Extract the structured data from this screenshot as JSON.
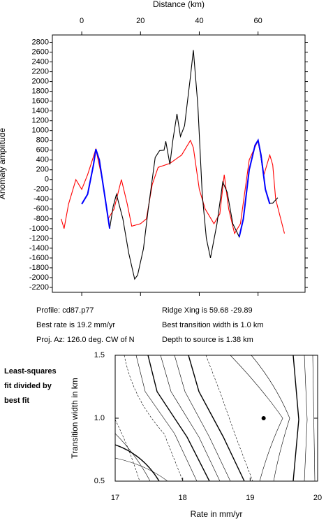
{
  "chart_data": [
    {
      "type": "line",
      "xlabel": "Distance (km)",
      "ylabel": "Anomaly amplitude",
      "xlim": [
        -10,
        76
      ],
      "xticks": [
        0,
        20,
        40,
        60
      ],
      "ylim": [
        -2300,
        2950
      ],
      "yticks": [
        -2200,
        -2000,
        -1800,
        -1600,
        -1400,
        -1200,
        -1000,
        -800,
        -600,
        -400,
        -200,
        0,
        200,
        400,
        600,
        800,
        1000,
        1200,
        1400,
        1600,
        1800,
        2000,
        2200,
        2400,
        2600,
        2800
      ],
      "annotations": [
        [
          "Profile: cd87.p77",
          "Best rate is 19.2 mm/yr",
          "Proj. Az: 126.0 deg. CW of N"
        ],
        [
          "Ridge Xing is 59.68 -29.89",
          "Best transition width is 1.0 km",
          "Depth to source is   1.38 km"
        ]
      ],
      "series": [
        {
          "color": "#ff0000",
          "x": [
            -7,
            -6,
            -4.5,
            -2,
            0,
            2,
            4.8,
            7,
            9,
            11,
            13.5,
            15.5,
            17,
            20,
            22,
            24,
            26,
            30,
            34,
            37,
            38,
            40,
            42,
            45,
            47,
            48.5,
            50,
            52,
            54,
            57,
            60,
            62,
            64,
            65,
            66,
            69
          ],
          "values": [
            -800,
            -1000,
            -500,
            0,
            -200,
            100,
            620,
            0,
            -800,
            -600,
            0,
            -500,
            -950,
            -900,
            -800,
            -100,
            250,
            330,
            500,
            800,
            650,
            -200,
            -600,
            -900,
            -700,
            100,
            -600,
            -1100,
            -900,
            400,
            800,
            100,
            500,
            300,
            -400,
            -1100
          ]
        },
        {
          "color": "#000000",
          "x": [
            0,
            2,
            4,
            4.8,
            6,
            8,
            9.5,
            10.7,
            11.8,
            14,
            16,
            18,
            19,
            21,
            22.6,
            25,
            26.5,
            28,
            28.6,
            30,
            31,
            32.4,
            33.6,
            35,
            37,
            38,
            39.5,
            41,
            42.4,
            43.8,
            46,
            48,
            49.5,
            51.4,
            53.6,
            55,
            57,
            59,
            60,
            61,
            62.5,
            64,
            65,
            66.7
          ],
          "values": [
            -500,
            -300,
            300,
            620,
            400,
            -400,
            -1000,
            -550,
            -300,
            -800,
            -1500,
            -2030,
            -1950,
            -1410,
            -620,
            450,
            590,
            600,
            780,
            310,
            800,
            1340,
            880,
            1100,
            2100,
            2640,
            1520,
            -300,
            -1200,
            -1600,
            -910,
            -50,
            -260,
            -900,
            -1170,
            -800,
            200,
            700,
            800,
            450,
            -200,
            -480,
            -480,
            -370
          ]
        },
        {
          "color": "#0000ff",
          "x": [
            0,
            2,
            4,
            4.8,
            6,
            8,
            9.5,
            null,
            53.6,
            55,
            57,
            59,
            60,
            61,
            62.5,
            64
          ],
          "values": [
            -500,
            -300,
            300,
            620,
            400,
            -400,
            -1000,
            null,
            -1170,
            -800,
            200,
            700,
            800,
            500,
            -200,
            -500
          ]
        }
      ]
    },
    {
      "type": "contour",
      "xlabel": "Rate in mm/yr",
      "ylabel": "Transition width in km",
      "annotation": [
        "Least-squares",
        "fit divided by",
        "best fit"
      ],
      "xlim": [
        17,
        20
      ],
      "xticks": [
        17,
        18,
        19,
        20
      ],
      "ylim": [
        0.5,
        1.5
      ],
      "yticks": [
        {
          "value": 0.5,
          "label": "0.5"
        },
        {
          "value": 1.0,
          "label": "1.0"
        },
        {
          "value": 1.5,
          "label": "1.5"
        }
      ],
      "series": [
        {
          "color": "#000000",
          "x": [
            19.2
          ],
          "values": [
            1.0
          ]
        }
      ]
    }
  ]
}
